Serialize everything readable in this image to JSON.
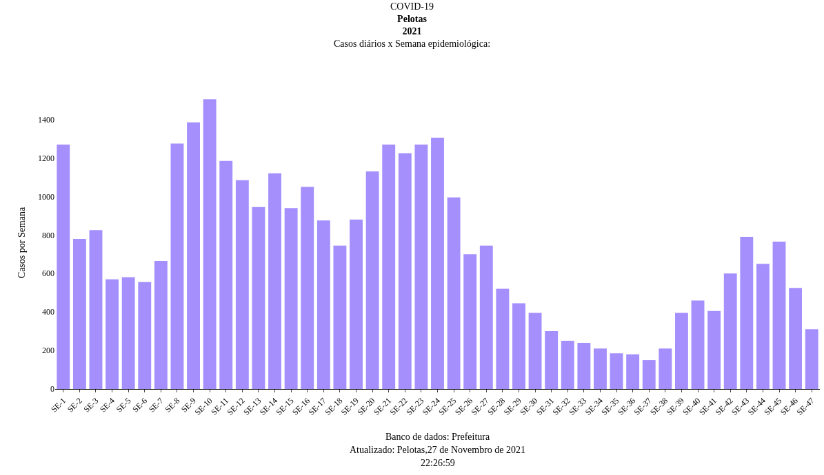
{
  "chart_data": {
    "type": "bar",
    "title": "COVID-19\nPelotas\n2021\nCasos diários x Semana epidemiológica:",
    "ylabel": "Casos por Semana",
    "categories": [
      "SE-1",
      "SE-2",
      "SE-3",
      "SE-4",
      "SE-5",
      "SE-6",
      "SE-7",
      "SE-8",
      "SE-9",
      "SE-10",
      "SE-11",
      "SE-12",
      "SE-13",
      "SE-14",
      "SE-15",
      "SE-16",
      "SE-17",
      "SE-18",
      "SE-19",
      "SE-20",
      "SE-21",
      "SE-22",
      "SE-23",
      "SE-24",
      "SE-25",
      "SE-26",
      "SE-27",
      "SE-28",
      "SE-29",
      "SE-30",
      "SE-31",
      "SE-32",
      "SE-33",
      "SE-34",
      "SE-35",
      "SE-36",
      "SE-37",
      "SE-38",
      "SE-39",
      "SE-40",
      "SE-41",
      "SE-42",
      "SE-43",
      "SE-44",
      "SE-45",
      "SE-46",
      "SE-47"
    ],
    "values": [
      1270,
      780,
      825,
      570,
      580,
      555,
      665,
      1275,
      1385,
      1505,
      1185,
      1085,
      945,
      1120,
      940,
      1050,
      875,
      745,
      880,
      1130,
      1270,
      1225,
      1270,
      1305,
      995,
      700,
      745,
      520,
      445,
      395,
      300,
      250,
      240,
      210,
      185,
      180,
      150,
      210,
      395,
      460,
      405,
      600,
      790,
      650,
      765,
      525,
      310
    ],
    "color": "#a48ffd",
    "ylim": [
      0,
      1520
    ],
    "yticks": [
      0,
      200,
      400,
      600,
      800,
      1000,
      1200,
      1400
    ],
    "annotations": [
      "Banco de dados: Prefeitura",
      "Atualizado: Pelotas,27 de Novembro de 2021",
      "22:26:59"
    ]
  }
}
